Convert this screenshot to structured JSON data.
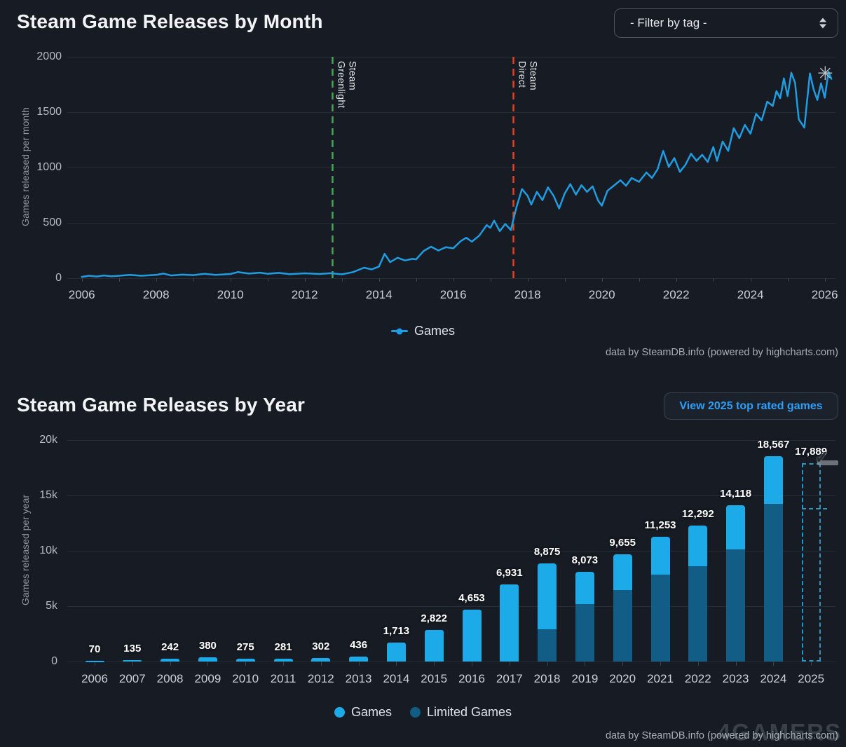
{
  "filter": {
    "label": "- Filter by tag -"
  },
  "button": {
    "label": "View 2025 top rated games"
  },
  "credits": "data by SteamDB.info (powered by highcharts.com)",
  "watermark": "4GAMERS",
  "chart_data": [
    {
      "type": "line",
      "title": "Steam Game Releases by Month",
      "ylabel": "Games released per month",
      "ylim": [
        0,
        2000
      ],
      "yticks": [
        0,
        500,
        1000,
        1500,
        2000
      ],
      "xticks_labeled": [
        2006,
        2008,
        2010,
        2012,
        2014,
        2016,
        2018,
        2020,
        2022,
        2024,
        2026
      ],
      "xrange": [
        2006,
        2026
      ],
      "grid": true,
      "legend_position": "bottom-center",
      "plot_lines": [
        {
          "x": 2012.75,
          "label": "Steam Greenlight",
          "color": "#43a853"
        },
        {
          "x": 2017.62,
          "label": "Steam Direct",
          "color": "#e8401f"
        }
      ],
      "series": [
        {
          "name": "Games",
          "color": "#1e9de3",
          "points": [
            [
              2006.0,
              12
            ],
            [
              2006.2,
              22
            ],
            [
              2006.4,
              15
            ],
            [
              2006.6,
              25
            ],
            [
              2006.8,
              18
            ],
            [
              2007.0,
              22
            ],
            [
              2007.3,
              30
            ],
            [
              2007.6,
              22
            ],
            [
              2008.0,
              30
            ],
            [
              2008.2,
              42
            ],
            [
              2008.4,
              25
            ],
            [
              2008.7,
              32
            ],
            [
              2009.0,
              28
            ],
            [
              2009.3,
              40
            ],
            [
              2009.6,
              30
            ],
            [
              2010.0,
              38
            ],
            [
              2010.2,
              55
            ],
            [
              2010.5,
              42
            ],
            [
              2010.8,
              50
            ],
            [
              2011.0,
              40
            ],
            [
              2011.3,
              48
            ],
            [
              2011.6,
              36
            ],
            [
              2012.0,
              44
            ],
            [
              2012.4,
              38
            ],
            [
              2012.7,
              45
            ],
            [
              2013.0,
              35
            ],
            [
              2013.3,
              55
            ],
            [
              2013.6,
              95
            ],
            [
              2013.8,
              80
            ],
            [
              2014.0,
              105
            ],
            [
              2014.15,
              220
            ],
            [
              2014.3,
              145
            ],
            [
              2014.5,
              185
            ],
            [
              2014.7,
              160
            ],
            [
              2014.9,
              175
            ],
            [
              2015.0,
              170
            ],
            [
              2015.2,
              245
            ],
            [
              2015.4,
              285
            ],
            [
              2015.6,
              250
            ],
            [
              2015.8,
              280
            ],
            [
              2016.0,
              270
            ],
            [
              2016.2,
              335
            ],
            [
              2016.35,
              365
            ],
            [
              2016.5,
              330
            ],
            [
              2016.7,
              385
            ],
            [
              2016.9,
              480
            ],
            [
              2017.0,
              455
            ],
            [
              2017.1,
              520
            ],
            [
              2017.25,
              425
            ],
            [
              2017.4,
              490
            ],
            [
              2017.55,
              435
            ],
            [
              2017.7,
              640
            ],
            [
              2017.85,
              805
            ],
            [
              2018.0,
              745
            ],
            [
              2018.1,
              665
            ],
            [
              2018.25,
              780
            ],
            [
              2018.4,
              705
            ],
            [
              2018.55,
              820
            ],
            [
              2018.7,
              745
            ],
            [
              2018.85,
              630
            ],
            [
              2019.0,
              765
            ],
            [
              2019.15,
              850
            ],
            [
              2019.3,
              755
            ],
            [
              2019.45,
              840
            ],
            [
              2019.6,
              780
            ],
            [
              2019.75,
              830
            ],
            [
              2019.9,
              700
            ],
            [
              2020.0,
              655
            ],
            [
              2020.15,
              790
            ],
            [
              2020.3,
              830
            ],
            [
              2020.5,
              885
            ],
            [
              2020.65,
              835
            ],
            [
              2020.8,
              905
            ],
            [
              2021.0,
              870
            ],
            [
              2021.2,
              955
            ],
            [
              2021.35,
              905
            ],
            [
              2021.5,
              985
            ],
            [
              2021.65,
              1150
            ],
            [
              2021.8,
              1005
            ],
            [
              2021.95,
              1085
            ],
            [
              2022.1,
              960
            ],
            [
              2022.25,
              1025
            ],
            [
              2022.4,
              1125
            ],
            [
              2022.55,
              1060
            ],
            [
              2022.7,
              1115
            ],
            [
              2022.85,
              1050
            ],
            [
              2023.0,
              1185
            ],
            [
              2023.1,
              1060
            ],
            [
              2023.25,
              1235
            ],
            [
              2023.4,
              1150
            ],
            [
              2023.55,
              1355
            ],
            [
              2023.7,
              1265
            ],
            [
              2023.85,
              1385
            ],
            [
              2024.0,
              1305
            ],
            [
              2024.15,
              1485
            ],
            [
              2024.3,
              1425
            ],
            [
              2024.45,
              1595
            ],
            [
              2024.6,
              1555
            ],
            [
              2024.7,
              1690
            ],
            [
              2024.8,
              1625
            ],
            [
              2024.9,
              1805
            ],
            [
              2025.0,
              1645
            ],
            [
              2025.1,
              1855
            ],
            [
              2025.2,
              1765
            ],
            [
              2025.3,
              1435
            ],
            [
              2025.45,
              1360
            ],
            [
              2025.6,
              1850
            ],
            [
              2025.7,
              1705
            ],
            [
              2025.8,
              1610
            ],
            [
              2025.9,
              1760
            ],
            [
              2026.0,
              1630
            ],
            [
              2026.1,
              1865
            ],
            [
              2026.18,
              1800
            ]
          ]
        }
      ]
    },
    {
      "type": "bar",
      "title": "Steam Game Releases by Year",
      "ylabel": "Games released per year",
      "ylim": [
        0,
        20000
      ],
      "ytick_values": [
        0,
        5000,
        10000,
        15000,
        20000
      ],
      "ytick_labels": [
        "0",
        "5k",
        "10k",
        "15k",
        "20k"
      ],
      "grid": true,
      "legend_position": "bottom-center",
      "categories": [
        "2006",
        "2007",
        "2008",
        "2009",
        "2010",
        "2011",
        "2012",
        "2013",
        "2014",
        "2015",
        "2016",
        "2017",
        "2018",
        "2019",
        "2020",
        "2021",
        "2022",
        "2023",
        "2024",
        "2025"
      ],
      "totals": [
        70,
        135,
        242,
        380,
        275,
        281,
        302,
        436,
        1713,
        2822,
        4653,
        6931,
        8875,
        8073,
        9655,
        11253,
        12292,
        14118,
        18567,
        17889
      ],
      "total_labels": [
        "70",
        "135",
        "242",
        "380",
        "275",
        "281",
        "302",
        "436",
        "1,713",
        "2,822",
        "4,653",
        "6,931",
        "8,875",
        "8,073",
        "9,655",
        "11,253",
        "12,292",
        "14,118",
        "18,567",
        "17,889"
      ],
      "limited": [
        0,
        0,
        0,
        0,
        0,
        0,
        0,
        0,
        0,
        0,
        0,
        0,
        2900,
        5200,
        6480,
        7850,
        8630,
        10130,
        14240,
        0
      ],
      "series": [
        {
          "name": "Games",
          "color": "#1caae9"
        },
        {
          "name": "Limited Games",
          "color": "#115d85"
        }
      ],
      "forecast": {
        "year": "2025",
        "total": 17889,
        "divider": 13860,
        "style": "dashed-outline",
        "color": "#2a96c0"
      }
    }
  ]
}
